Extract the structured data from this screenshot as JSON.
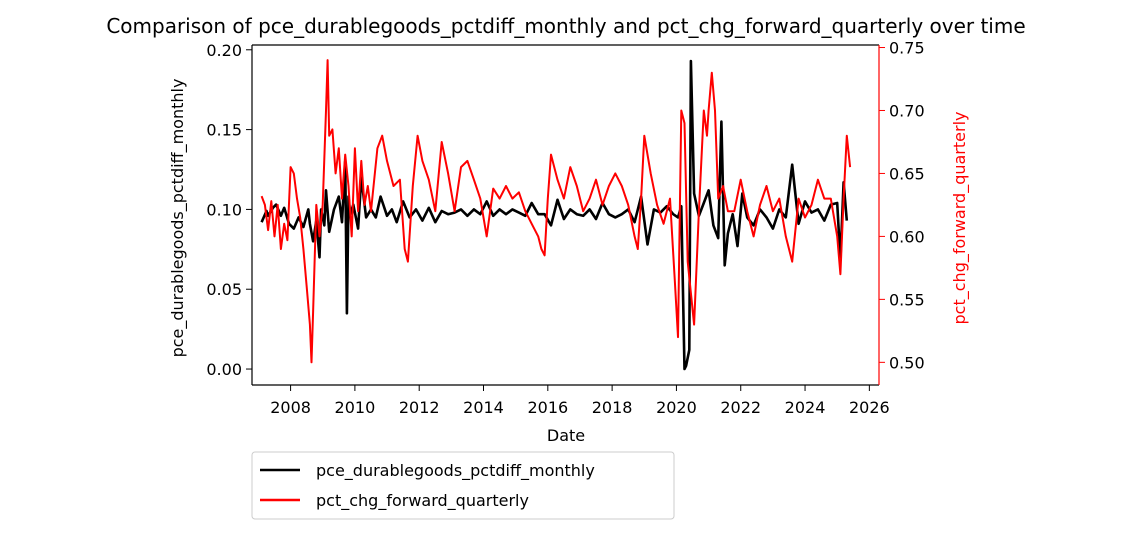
{
  "chart_data": {
    "type": "line",
    "title": "Comparison of pce_durablegoods_pctdiff_monthly and pct_chg_forward_quarterly over time",
    "xlabel": "Date",
    "ylabel_left": "pce_durablegoods_pctdiff_monthly",
    "ylabel_right": "pct_chg_forward_quarterly",
    "xlim": [
      2006.8,
      2026.3
    ],
    "ylim_left": [
      -0.01,
      0.203
    ],
    "ylim_right": [
      0.482,
      0.752
    ],
    "x_ticks": [
      {
        "value": 2008,
        "label": "2008"
      },
      {
        "value": 2010,
        "label": "2010"
      },
      {
        "value": 2012,
        "label": "2012"
      },
      {
        "value": 2014,
        "label": "2014"
      },
      {
        "value": 2016,
        "label": "2016"
      },
      {
        "value": 2018,
        "label": "2018"
      },
      {
        "value": 2020,
        "label": "2020"
      },
      {
        "value": 2022,
        "label": "2022"
      },
      {
        "value": 2024,
        "label": "2024"
      },
      {
        "value": 2026,
        "label": "2026"
      }
    ],
    "y_ticks_left": [
      {
        "value": 0.0,
        "label": "0.00"
      },
      {
        "value": 0.05,
        "label": "0.05"
      },
      {
        "value": 0.1,
        "label": "0.10"
      },
      {
        "value": 0.15,
        "label": "0.15"
      },
      {
        "value": 0.2,
        "label": "0.20"
      }
    ],
    "y_ticks_right": [
      {
        "value": 0.5,
        "label": "0.50"
      },
      {
        "value": 0.55,
        "label": "0.55"
      },
      {
        "value": 0.6,
        "label": "0.60"
      },
      {
        "value": 0.65,
        "label": "0.65"
      },
      {
        "value": 0.7,
        "label": "0.70"
      },
      {
        "value": 0.75,
        "label": "0.75"
      }
    ],
    "legend_position": "below-left",
    "series": [
      {
        "name": "pce_durablegoods_pctdiff_monthly",
        "axis": "left",
        "color": "#000000",
        "x": [
          2007.1,
          2007.25,
          2007.3,
          2007.45,
          2007.55,
          2007.7,
          2007.8,
          2007.95,
          2008.1,
          2008.25,
          2008.4,
          2008.55,
          2008.6,
          2008.7,
          2008.8,
          2008.9,
          2008.95,
          2009.05,
          2009.1,
          2009.2,
          2009.35,
          2009.5,
          2009.6,
          2009.7,
          2009.75,
          2009.8,
          2009.85,
          2009.95,
          2010.1,
          2010.2,
          2010.35,
          2010.5,
          2010.65,
          2010.8,
          2011.0,
          2011.15,
          2011.3,
          2011.5,
          2011.7,
          2011.9,
          2012.1,
          2012.3,
          2012.5,
          2012.7,
          2012.9,
          2013.1,
          2013.3,
          2013.5,
          2013.7,
          2013.9,
          2014.1,
          2014.3,
          2014.5,
          2014.7,
          2014.9,
          2015.1,
          2015.3,
          2015.5,
          2015.7,
          2015.9,
          2016.1,
          2016.3,
          2016.5,
          2016.7,
          2016.9,
          2017.1,
          2017.3,
          2017.5,
          2017.7,
          2017.9,
          2018.1,
          2018.3,
          2018.5,
          2018.7,
          2018.9,
          2019.1,
          2019.3,
          2019.5,
          2019.7,
          2019.9,
          2020.05,
          2020.15,
          2020.25,
          2020.3,
          2020.4,
          2020.45,
          2020.55,
          2020.7,
          2020.85,
          2021.0,
          2021.15,
          2021.3,
          2021.4,
          2021.5,
          2021.6,
          2021.75,
          2021.9,
          2022.05,
          2022.2,
          2022.4,
          2022.6,
          2022.8,
          2023.0,
          2023.2,
          2023.4,
          2023.6,
          2023.8,
          2024.0,
          2024.2,
          2024.4,
          2024.6,
          2024.8,
          2025.0,
          2025.1,
          2025.2,
          2025.3
        ],
        "values": [
          0.092,
          0.099,
          0.096,
          0.101,
          0.103,
          0.096,
          0.101,
          0.091,
          0.088,
          0.095,
          0.089,
          0.1,
          0.091,
          0.08,
          0.093,
          0.07,
          0.1,
          0.09,
          0.112,
          0.086,
          0.1,
          0.108,
          0.092,
          0.13,
          0.035,
          0.108,
          0.097,
          0.103,
          0.088,
          0.12,
          0.095,
          0.1,
          0.095,
          0.108,
          0.096,
          0.1,
          0.092,
          0.105,
          0.095,
          0.1,
          0.093,
          0.101,
          0.092,
          0.099,
          0.097,
          0.098,
          0.1,
          0.096,
          0.1,
          0.097,
          0.105,
          0.096,
          0.1,
          0.097,
          0.1,
          0.098,
          0.096,
          0.104,
          0.097,
          0.097,
          0.09,
          0.106,
          0.094,
          0.1,
          0.097,
          0.096,
          0.1,
          0.094,
          0.104,
          0.097,
          0.095,
          0.097,
          0.1,
          0.092,
          0.108,
          0.078,
          0.1,
          0.098,
          0.102,
          0.097,
          0.095,
          0.102,
          0.0,
          0.002,
          0.012,
          0.193,
          0.11,
          0.096,
          0.104,
          0.112,
          0.09,
          0.082,
          0.155,
          0.065,
          0.085,
          0.097,
          0.077,
          0.11,
          0.095,
          0.09,
          0.1,
          0.095,
          0.088,
          0.1,
          0.095,
          0.128,
          0.091,
          0.105,
          0.098,
          0.1,
          0.093,
          0.103,
          0.104,
          0.068,
          0.117,
          0.093
        ]
      },
      {
        "name": "pct_chg_forward_quarterly",
        "axis": "right",
        "color": "#ff0000",
        "x": [
          2007.1,
          2007.2,
          2007.3,
          2007.4,
          2007.5,
          2007.6,
          2007.7,
          2007.8,
          2007.9,
          2008.0,
          2008.1,
          2008.2,
          2008.3,
          2008.4,
          2008.5,
          2008.6,
          2008.65,
          2008.7,
          2008.8,
          2008.9,
          2009.0,
          2009.1,
          2009.15,
          2009.2,
          2009.3,
          2009.4,
          2009.5,
          2009.6,
          2009.7,
          2009.8,
          2009.9,
          2010.0,
          2010.1,
          2010.2,
          2010.3,
          2010.4,
          2010.5,
          2010.7,
          2010.85,
          2011.0,
          2011.2,
          2011.4,
          2011.55,
          2011.65,
          2011.8,
          2011.95,
          2012.1,
          2012.3,
          2012.5,
          2012.7,
          2012.9,
          2013.1,
          2013.3,
          2013.5,
          2013.7,
          2013.9,
          2014.1,
          2014.3,
          2014.5,
          2014.7,
          2014.9,
          2015.1,
          2015.3,
          2015.5,
          2015.7,
          2015.8,
          2015.9,
          2016.0,
          2016.1,
          2016.3,
          2016.5,
          2016.7,
          2016.9,
          2017.1,
          2017.3,
          2017.5,
          2017.7,
          2017.9,
          2018.1,
          2018.3,
          2018.5,
          2018.7,
          2018.8,
          2018.9,
          2019.0,
          2019.2,
          2019.4,
          2019.6,
          2019.8,
          2019.95,
          2020.05,
          2020.15,
          2020.25,
          2020.35,
          2020.45,
          2020.55,
          2020.7,
          2020.85,
          2020.95,
          2021.0,
          2021.1,
          2021.2,
          2021.3,
          2021.45,
          2021.6,
          2021.8,
          2022.0,
          2022.2,
          2022.4,
          2022.6,
          2022.8,
          2023.0,
          2023.2,
          2023.4,
          2023.6,
          2023.8,
          2024.0,
          2024.2,
          2024.4,
          2024.6,
          2024.8,
          2025.0,
          2025.1,
          2025.2,
          2025.3,
          2025.4
        ],
        "values": [
          0.632,
          0.625,
          0.605,
          0.628,
          0.6,
          0.625,
          0.59,
          0.61,
          0.597,
          0.655,
          0.65,
          0.63,
          0.615,
          0.59,
          0.56,
          0.53,
          0.5,
          0.54,
          0.625,
          0.6,
          0.625,
          0.7,
          0.74,
          0.68,
          0.685,
          0.65,
          0.67,
          0.63,
          0.665,
          0.64,
          0.6,
          0.67,
          0.62,
          0.66,
          0.625,
          0.64,
          0.62,
          0.67,
          0.68,
          0.66,
          0.64,
          0.645,
          0.59,
          0.58,
          0.64,
          0.68,
          0.66,
          0.645,
          0.62,
          0.675,
          0.65,
          0.62,
          0.655,
          0.66,
          0.645,
          0.63,
          0.6,
          0.638,
          0.63,
          0.64,
          0.63,
          0.635,
          0.62,
          0.61,
          0.6,
          0.59,
          0.585,
          0.63,
          0.665,
          0.645,
          0.63,
          0.655,
          0.64,
          0.62,
          0.63,
          0.645,
          0.625,
          0.64,
          0.65,
          0.64,
          0.625,
          0.6,
          0.59,
          0.63,
          0.68,
          0.65,
          0.625,
          0.61,
          0.63,
          0.565,
          0.52,
          0.7,
          0.69,
          0.58,
          0.555,
          0.53,
          0.62,
          0.7,
          0.68,
          0.7,
          0.73,
          0.7,
          0.63,
          0.64,
          0.62,
          0.62,
          0.645,
          0.62,
          0.6,
          0.625,
          0.64,
          0.62,
          0.63,
          0.6,
          0.58,
          0.63,
          0.615,
          0.625,
          0.645,
          0.63,
          0.63,
          0.6,
          0.57,
          0.63,
          0.68,
          0.655
        ]
      }
    ]
  }
}
